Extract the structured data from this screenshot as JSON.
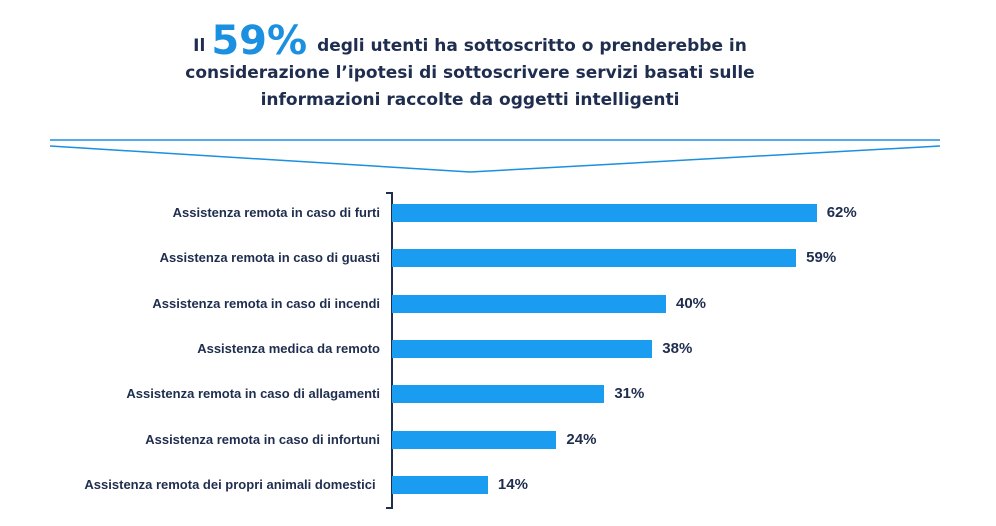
{
  "chart_data": {
    "type": "bar",
    "orientation": "horizontal",
    "title": {
      "lead": "Il",
      "highlight": "59%",
      "text": "degli utenti ha sottoscritto o prenderebbe in considerazione l’ipotesi di sottoscrivere servizi basati sulle informazioni raccolte da oggetti intelligenti"
    },
    "categories": [
      "Assistenza remota in caso di furti",
      "Assistenza remota in caso di guasti",
      "Assistenza remota in caso di incendi",
      "Assistenza medica da remoto",
      "Assistenza remota in caso di allagamenti",
      "Assistenza remota in caso di infortuni",
      "Assistenza remota dei propri animali domestici"
    ],
    "values": [
      62,
      59,
      40,
      38,
      31,
      24,
      14
    ],
    "value_labels": [
      "62%",
      "59%",
      "40%",
      "38%",
      "31%",
      "24%",
      "14%"
    ],
    "color": "#1a9cf0"
  }
}
